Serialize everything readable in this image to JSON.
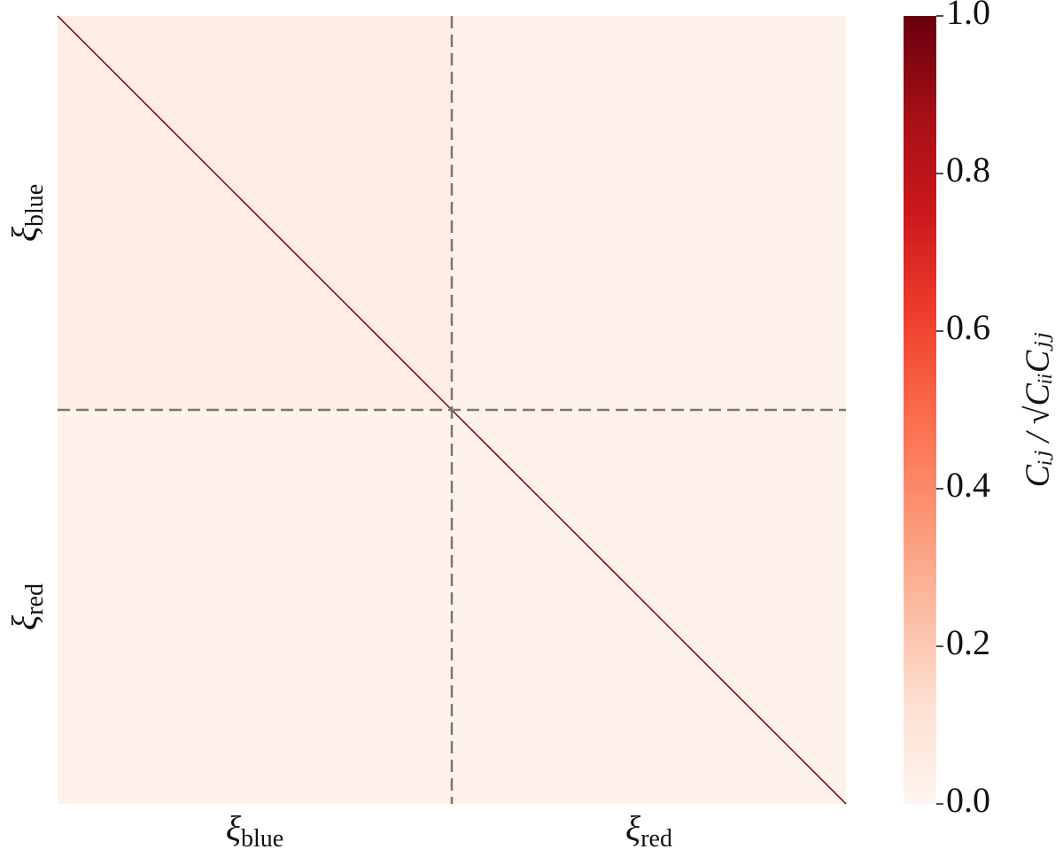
{
  "chart_data": {
    "type": "heatmap",
    "symbol": "ξ",
    "categories": [
      "blue",
      "red"
    ],
    "z": [
      [
        0.05,
        0.02
      ],
      [
        0.02,
        0.02
      ]
    ],
    "diagonal": 1.0,
    "colormap": [
      "#fff5f0",
      "#fee0d2",
      "#fcbba1",
      "#fc9272",
      "#fb6a4a",
      "#ef3b2c",
      "#cb181d",
      "#a50f15",
      "#67000d"
    ],
    "clim": [
      0,
      1
    ],
    "cticks": [
      {
        "value": 0,
        "label": "0.0"
      },
      {
        "value": 0.2,
        "label": "0.2"
      },
      {
        "value": 0.4,
        "label": "0.4"
      },
      {
        "value": 0.6,
        "label": "0.6"
      },
      {
        "value": 0.8,
        "label": "0.8"
      },
      {
        "value": 1,
        "label": "1.0"
      }
    ],
    "colorbar_label": "Cᵢⱼ / √CᵢᵢCⱼⱼ"
  }
}
